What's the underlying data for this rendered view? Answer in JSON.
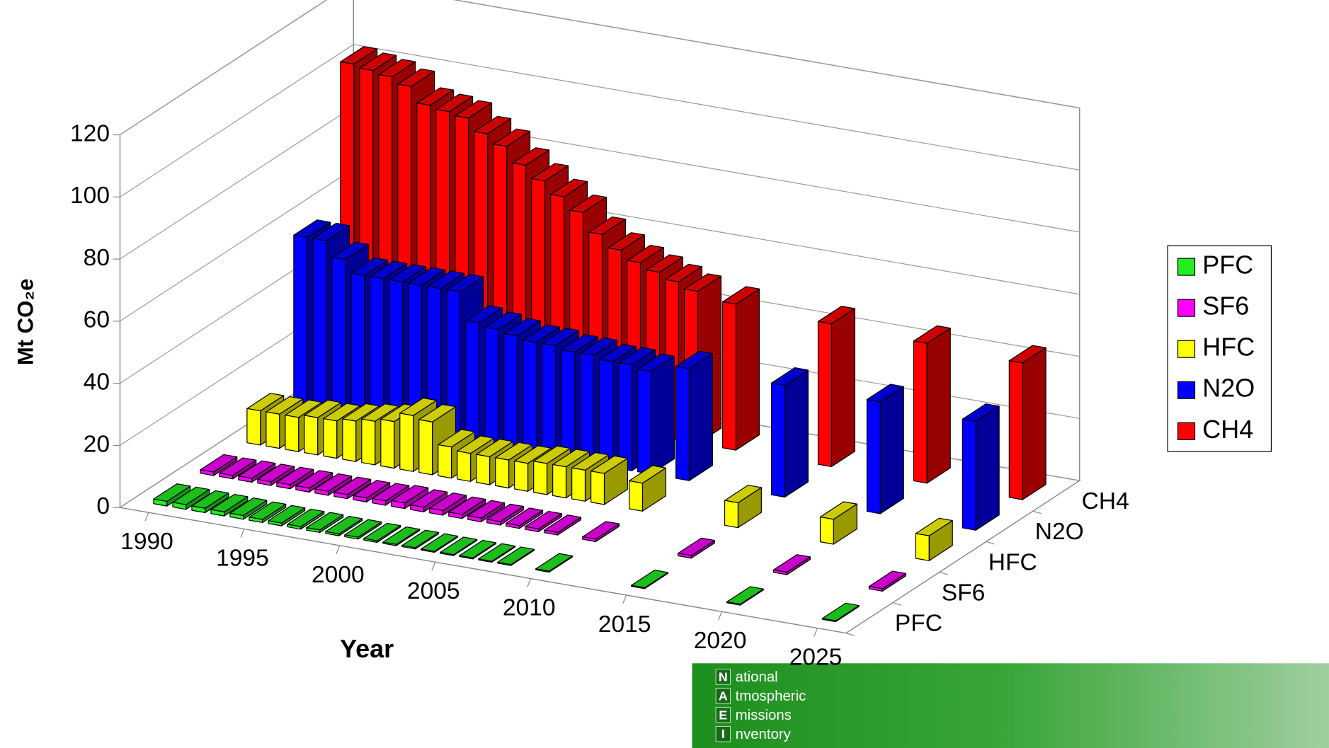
{
  "chart_data": {
    "type": "bar3d",
    "y_label": "Mt CO₂e",
    "x_label": "Year",
    "x": [
      1990,
      1991,
      1992,
      1993,
      1994,
      1995,
      1996,
      1997,
      1998,
      1999,
      2000,
      2001,
      2002,
      2003,
      2004,
      2005,
      2006,
      2007,
      2008,
      2010,
      2015,
      2020,
      2025
    ],
    "xlim": [
      1988.5,
      2026.5
    ],
    "xticks": [
      1990,
      1995,
      2000,
      2005,
      2010,
      2015,
      2020,
      2025
    ],
    "ylim": [
      0,
      120
    ],
    "yticks": [
      0,
      20,
      40,
      60,
      80,
      100,
      120
    ],
    "grid": true,
    "legend": "right",
    "series": [
      {
        "name": "PFC",
        "color": "#22ee22",
        "values": [
          1.5,
          1.5,
          1.4,
          1.3,
          1.2,
          1.0,
          0.9,
          0.8,
          0.8,
          0.6,
          0.6,
          0.5,
          0.4,
          0.4,
          0.3,
          0.3,
          0.3,
          0.3,
          0.3,
          0.3,
          0.3,
          0.3,
          0.3
        ]
      },
      {
        "name": "SF6",
        "color": "#ff00ff",
        "values": [
          1.1,
          1.1,
          1.2,
          1.2,
          1.3,
          1.3,
          1.3,
          1.3,
          1.3,
          1.4,
          1.8,
          1.5,
          1.5,
          1.3,
          1.2,
          1.1,
          0.9,
          0.9,
          0.8,
          0.8,
          0.8,
          0.8,
          0.8
        ]
      },
      {
        "name": "HFC",
        "color": "#ffff00",
        "values": [
          11,
          11,
          11,
          12,
          12,
          13,
          14,
          15,
          18,
          17,
          10,
          9,
          9,
          9,
          9,
          10,
          10,
          10,
          10,
          9,
          8,
          8,
          8
        ]
      },
      {
        "name": "N2O",
        "color": "#0000ff",
        "values": [
          57,
          57,
          52,
          48,
          48,
          48,
          48,
          48,
          48,
          39,
          38,
          37,
          36,
          36,
          35,
          35,
          34,
          34,
          33,
          36,
          36,
          36,
          35
        ]
      },
      {
        "name": "CH4",
        "color": "#ff0000",
        "values": [
          103,
          102,
          101,
          99,
          94,
          93,
          92,
          88,
          85,
          80,
          76,
          72,
          68,
          62,
          58,
          55,
          53,
          51,
          49,
          47,
          46,
          45,
          44
        ]
      }
    ]
  },
  "logo": [
    {
      "initial": "N",
      "rest": "ational"
    },
    {
      "initial": "A",
      "rest": "tmospheric"
    },
    {
      "initial": "E",
      "rest": "missions"
    },
    {
      "initial": "I",
      "rest": "nventory"
    }
  ]
}
